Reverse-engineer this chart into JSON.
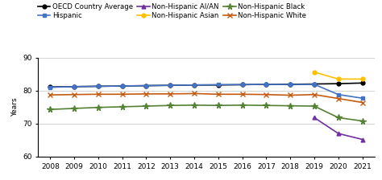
{
  "years": [
    2008,
    2009,
    2010,
    2011,
    2012,
    2013,
    2014,
    2015,
    2016,
    2017,
    2018,
    2019,
    2020,
    2021
  ],
  "series_order": [
    "OECD Country Average",
    "Hispanic",
    "Non-Hispanic AI/AN",
    "Non-Hispanic Asian",
    "Non-Hispanic Black",
    "Non-Hispanic White"
  ],
  "series": {
    "OECD Country Average": {
      "color": "#000000",
      "marker": "o",
      "markersize": 3.5,
      "linewidth": 1.2,
      "values": [
        81.1,
        81.2,
        81.3,
        81.4,
        81.5,
        81.6,
        81.7,
        81.7,
        81.8,
        81.9,
        81.9,
        82.0,
        82.1,
        82.3
      ]
    },
    "Hispanic": {
      "color": "#4472C4",
      "marker": "s",
      "markersize": 3.5,
      "linewidth": 1.2,
      "values": [
        81.0,
        81.2,
        81.3,
        81.4,
        81.5,
        81.6,
        81.7,
        81.8,
        81.8,
        81.9,
        81.8,
        81.9,
        78.8,
        77.7
      ]
    },
    "Non-Hispanic AI/AN": {
      "color": "#7030A0",
      "marker": "^",
      "markersize": 3.5,
      "linewidth": 1.2,
      "values": [
        null,
        null,
        null,
        null,
        null,
        null,
        null,
        null,
        null,
        null,
        null,
        71.8,
        67.0,
        65.2
      ]
    },
    "Non-Hispanic Asian": {
      "color": "#FFC000",
      "marker": "o",
      "markersize": 3.5,
      "linewidth": 1.2,
      "values": [
        null,
        null,
        null,
        null,
        null,
        null,
        null,
        null,
        null,
        null,
        null,
        85.6,
        83.5,
        83.5
      ]
    },
    "Non-Hispanic Black": {
      "color": "#548235",
      "marker": "*",
      "markersize": 5.5,
      "linewidth": 1.2,
      "values": [
        74.3,
        74.6,
        74.9,
        75.1,
        75.3,
        75.5,
        75.6,
        75.5,
        75.6,
        75.5,
        75.4,
        75.3,
        71.8,
        70.8
      ]
    },
    "Non-Hispanic White": {
      "color": "#C55A11",
      "marker": "x",
      "markersize": 4.5,
      "linewidth": 1.2,
      "values": [
        78.7,
        78.8,
        78.9,
        78.9,
        79.0,
        79.0,
        79.1,
        78.9,
        78.9,
        78.8,
        78.6,
        78.8,
        77.6,
        76.4
      ]
    }
  },
  "ylabel": "Years",
  "ylim": [
    60,
    90
  ],
  "yticks": [
    60,
    70,
    80,
    90
  ],
  "xlim": [
    2007.5,
    2021.5
  ],
  "legend_fontsize": 6.2,
  "axis_fontsize": 6.5,
  "legend_order": [
    "OECD Country Average",
    "Hispanic",
    "Non-Hispanic AI/AN",
    "Non-Hispanic Asian",
    "Non-Hispanic Black",
    "Non-Hispanic White"
  ]
}
